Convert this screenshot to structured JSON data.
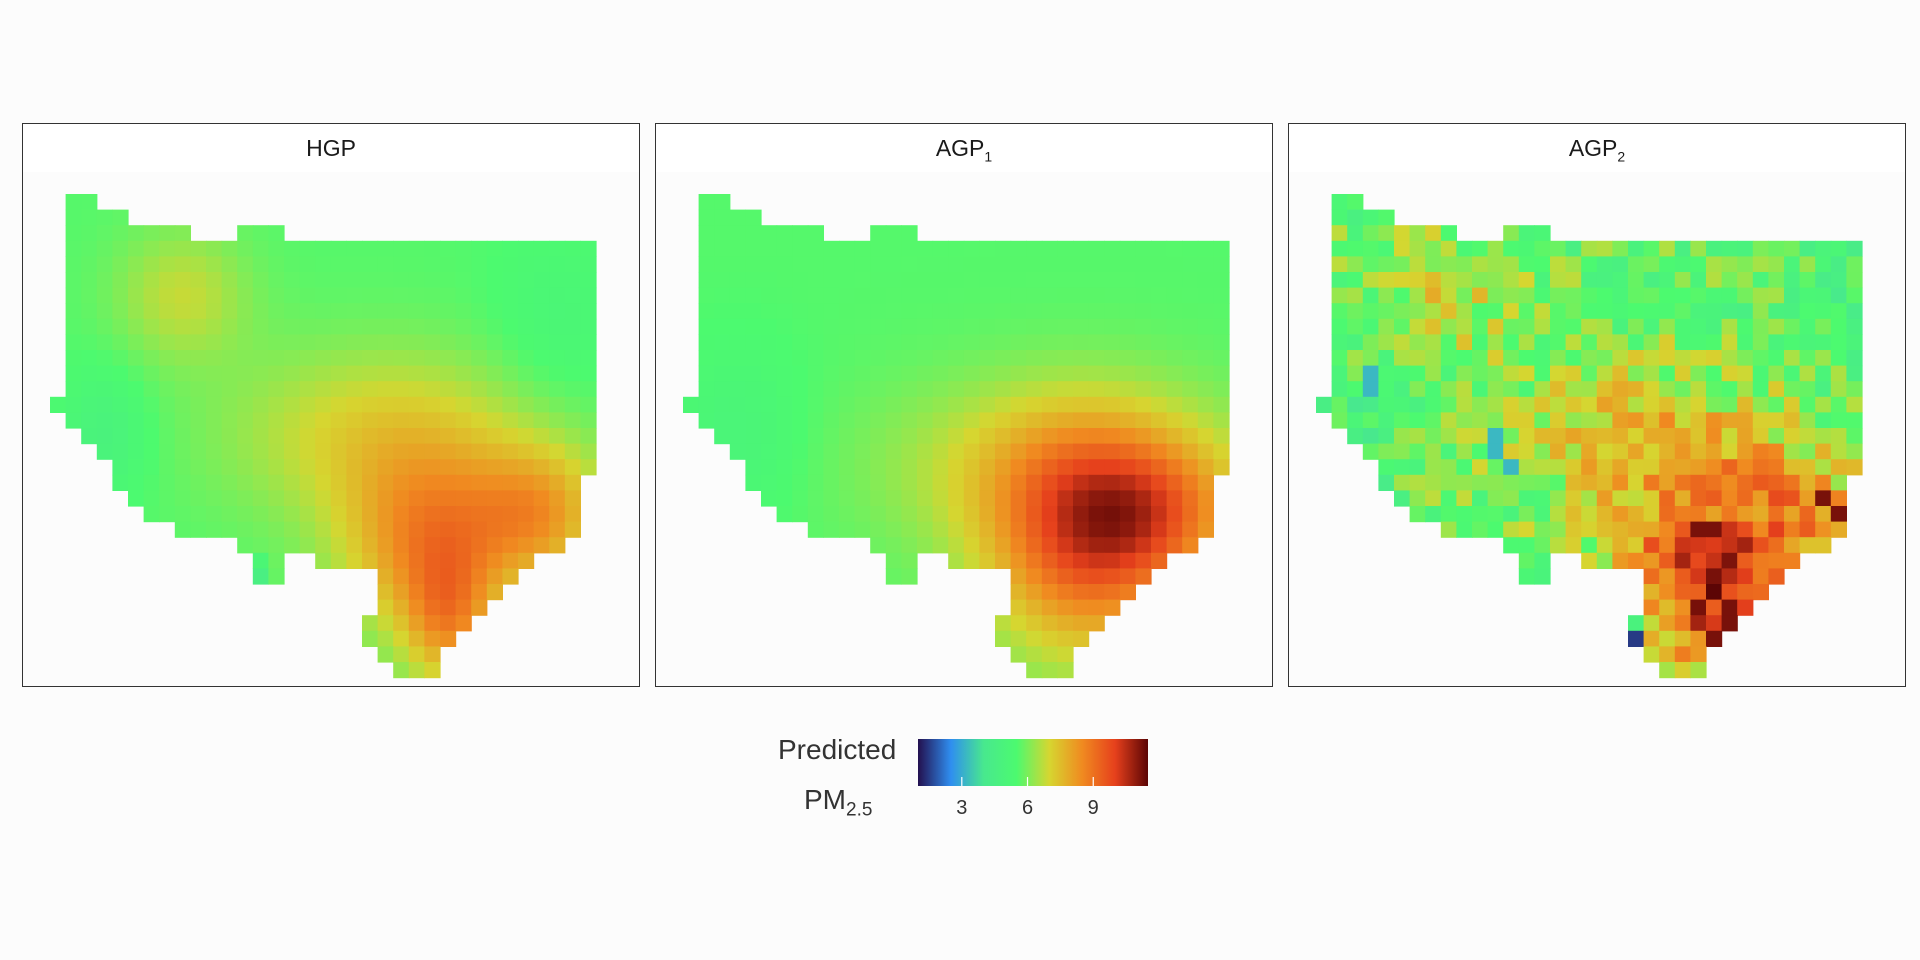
{
  "chart_data": {
    "type": "heatmap",
    "panels": [
      {
        "title": "HGP",
        "title_sub": ""
      },
      {
        "title": "AGP",
        "title_sub": "1"
      },
      {
        "title": "AGP",
        "title_sub": "2"
      }
    ],
    "legend": {
      "title_line1": "Predicted",
      "title_line2": "PM",
      "title_line2_sub": "2.5",
      "ticks": [
        "3",
        "6",
        "9"
      ],
      "tick_values": [
        3,
        6,
        9
      ],
      "range": [
        1,
        11.5
      ],
      "colormap": [
        "#23104f",
        "#2f8ef0",
        "#48e88e",
        "#4cfa6f",
        "#d6d630",
        "#f08a20",
        "#e6401c",
        "#5c0505"
      ]
    }
  }
}
